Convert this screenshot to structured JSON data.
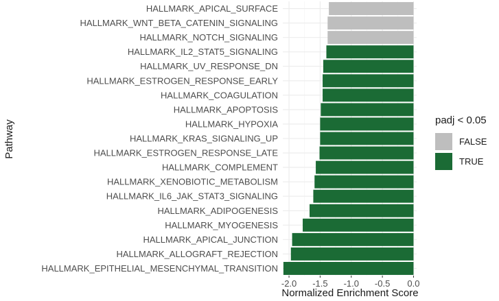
{
  "chart_data": {
    "type": "bar",
    "orientation": "horizontal",
    "xlabel": "Normalized Enrichment Score",
    "ylabel": "Pathway",
    "xlim": [
      -2.1,
      0.05
    ],
    "xticks": [
      -2.0,
      -1.5,
      -1.0,
      -0.5,
      0.0
    ],
    "xtick_labels": [
      "-2.0",
      "-1.5",
      "-1.0",
      "-0.5",
      "0.0"
    ],
    "grid": true,
    "legend": {
      "title": "padj < 0.05",
      "position": "right",
      "entries": [
        {
          "label": "FALSE",
          "color": "#bebebe"
        },
        {
          "label": "TRUE",
          "color": "#1b6b35"
        }
      ]
    },
    "categories": [
      "HALLMARK_APICAL_SURFACE",
      "HALLMARK_WNT_BETA_CATENIN_SIGNALING",
      "HALLMARK_NOTCH_SIGNALING",
      "HALLMARK_IL2_STAT5_SIGNALING",
      "HALLMARK_UV_RESPONSE_DN",
      "HALLMARK_ESTROGEN_RESPONSE_EARLY",
      "HALLMARK_COAGULATION",
      "HALLMARK_APOPTOSIS",
      "HALLMARK_HYPOXIA",
      "HALLMARK_KRAS_SIGNALING_UP",
      "HALLMARK_ESTROGEN_RESPONSE_LATE",
      "HALLMARK_COMPLEMENT",
      "HALLMARK_XENOBIOTIC_METABOLISM",
      "HALLMARK_IL6_JAK_STAT3_SIGNALING",
      "HALLMARK_ADIPOGENESIS",
      "HALLMARK_MYOGENESIS",
      "HALLMARK_APICAL_JUNCTION",
      "HALLMARK_ALLOGRAFT_REJECTION",
      "HALLMARK_EPITHELIAL_MESENCHYMAL_TRANSITION"
    ],
    "values": [
      -1.36,
      -1.38,
      -1.38,
      -1.4,
      -1.45,
      -1.46,
      -1.46,
      -1.49,
      -1.5,
      -1.5,
      -1.51,
      -1.57,
      -1.59,
      -1.61,
      -1.67,
      -1.78,
      -1.95,
      -1.97,
      -2.09
    ],
    "significant": [
      false,
      false,
      false,
      true,
      true,
      true,
      true,
      true,
      true,
      true,
      true,
      true,
      true,
      true,
      true,
      true,
      true,
      true,
      true
    ]
  }
}
